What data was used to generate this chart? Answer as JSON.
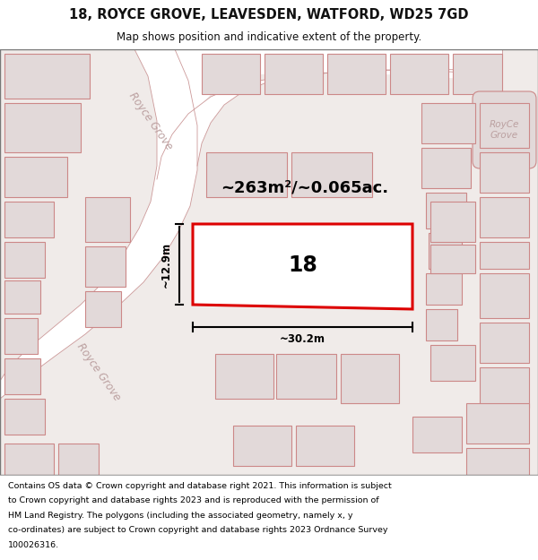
{
  "title_line1": "18, ROYCE GROVE, LEAVESDEN, WATFORD, WD25 7GD",
  "title_line2": "Map shows position and indicative extent of the property.",
  "footer_text": "Contains OS data © Crown copyright and database right 2021. This information is subject to Crown copyright and database rights 2023 and is reproduced with the permission of HM Land Registry. The polygons (including the associated geometry, namely x, y co-ordinates) are subject to Crown copyright and database rights 2023 Ordnance Survey 100026316.",
  "map_bg": "#f0ebe9",
  "header_bg": "#ffffff",
  "footer_bg": "#ffffff",
  "building_fill": "#e2d9d9",
  "building_edge": "#cc8888",
  "road_fill": "#ffffff",
  "highlight_fill": "#ffffff",
  "highlight_edge": "#dd0000",
  "area_text": "~263m²/~0.065ac.",
  "number_text": "18",
  "dim_h_text": "~12.9m",
  "dim_w_text": "~30.2m",
  "street_label": "Royce Grove",
  "corner_label": "RoyCe\nGrove"
}
